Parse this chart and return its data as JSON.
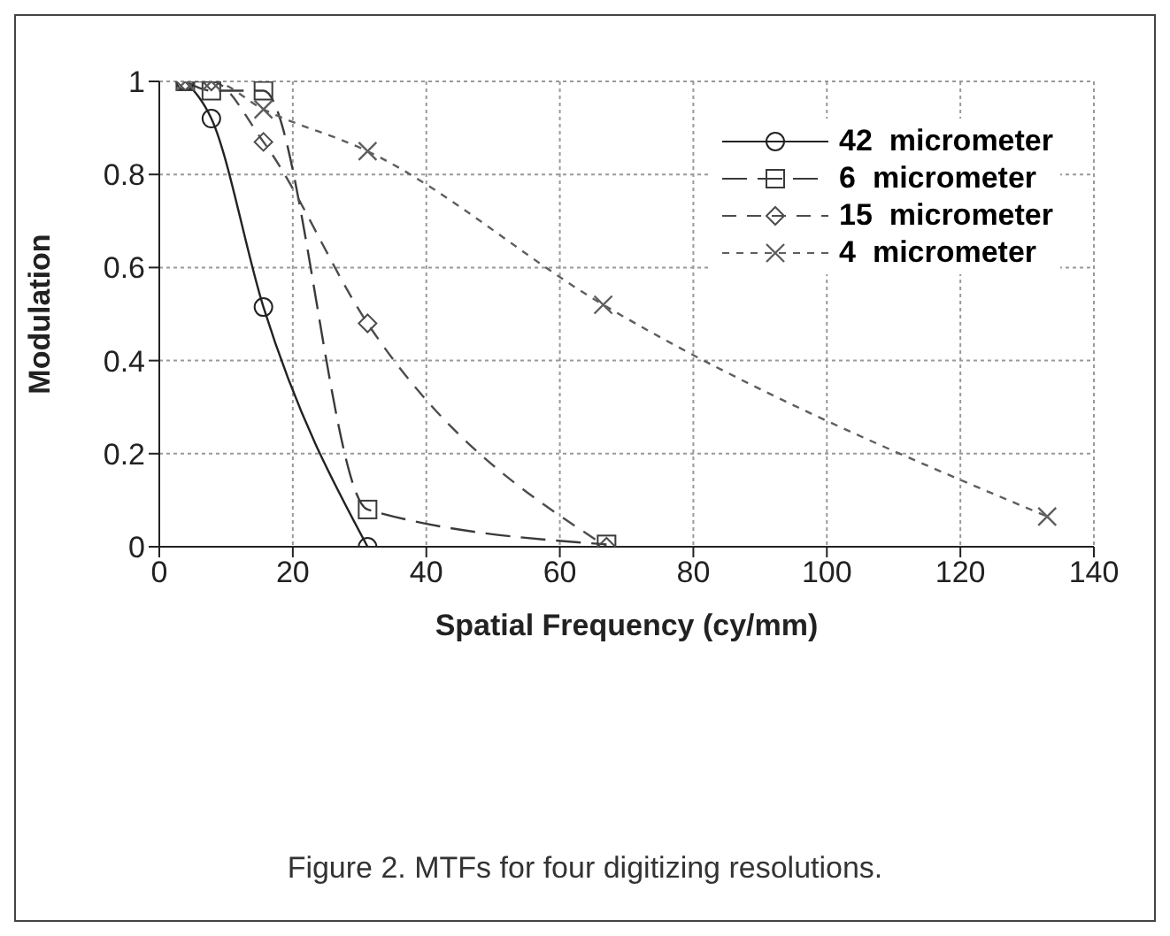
{
  "chart_data": {
    "type": "line",
    "xlabel": "Spatial  Frequency  (cy/mm)",
    "ylabel": "Modulation",
    "xlim": [
      0,
      140
    ],
    "xticks": [
      0,
      20,
      40,
      60,
      80,
      100,
      120,
      140
    ],
    "ylim": [
      0,
      1
    ],
    "yticks": [
      0,
      0.2,
      0.4,
      0.6,
      0.8,
      1
    ],
    "grid": true,
    "legend": "top right",
    "annotations": [
      "Figure 2. MTFs for four digitizing resolutions."
    ],
    "series": [
      {
        "name": "42  micrometer",
        "color": "#222222",
        "marker": "circle",
        "line_style": "solid",
        "x": [
          3.9,
          7.8,
          15.6,
          31.2
        ],
        "values": [
          1,
          0.92,
          0.515,
          0
        ]
      },
      {
        "name": "6  micrometer",
        "color": "#3a3a3a",
        "marker": "square",
        "line_style": "dashed",
        "x": [
          3.9,
          7.8,
          15.6,
          31.2,
          67
        ],
        "values": [
          1,
          0.98,
          0.98,
          0.08,
          0.005
        ]
      },
      {
        "name": "15  micrometer",
        "color": "#4c4c4c",
        "marker": "diamond",
        "line_style": "dashed",
        "x": [
          3.9,
          7.8,
          15.6,
          31.2,
          67
        ],
        "values": [
          1,
          1,
          0.87,
          0.48,
          0
        ]
      },
      {
        "name": "4  micrometer",
        "color": "#5e5e5e",
        "marker": "cross",
        "line_style": "dotted",
        "x": [
          3.9,
          7.8,
          15.6,
          31.2,
          66.5,
          133
        ],
        "values": [
          1,
          1,
          0.94,
          0.85,
          0.52,
          0.065
        ]
      }
    ]
  }
}
